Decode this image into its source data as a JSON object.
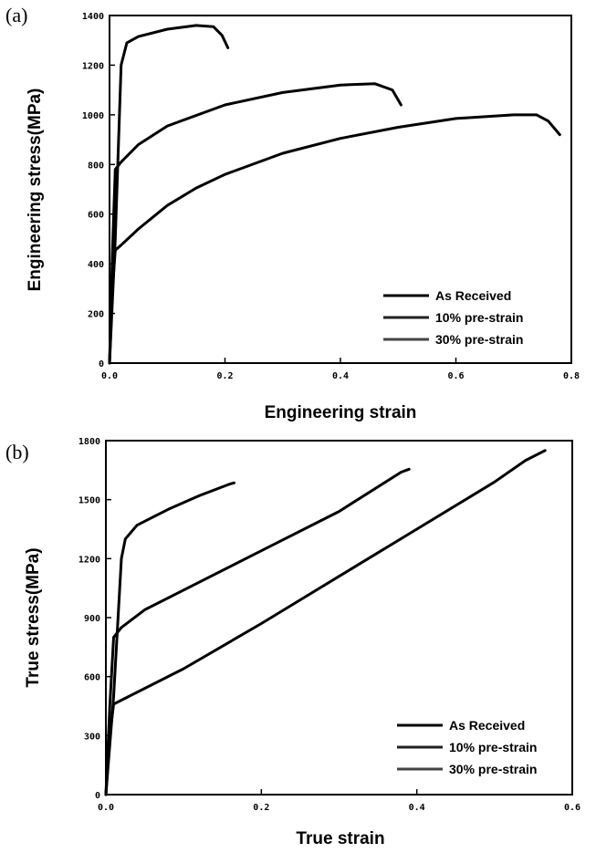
{
  "chart_data": [
    {
      "type": "line",
      "panel_label": "(a)",
      "xlabel": "Engineering strain",
      "ylabel": "Engineering stress(MPa)",
      "xlim": [
        0.0,
        0.8
      ],
      "ylim": [
        0,
        1400
      ],
      "x_ticks": [
        0.0,
        0.2,
        0.4,
        0.6,
        0.8
      ],
      "x_tick_labels": [
        "0.0",
        "0.2",
        "0.4",
        "0.6",
        "0.8"
      ],
      "y_ticks": [
        0,
        200,
        400,
        600,
        800,
        1000,
        1200,
        1400
      ],
      "y_tick_labels": [
        "0",
        "200",
        "400",
        "600",
        "800",
        "1000",
        "1200",
        "1400"
      ],
      "legend_position": "bottom-right",
      "series": [
        {
          "name": "As Received",
          "color": "#000000",
          "x": [
            0.0,
            0.005,
            0.01,
            0.02,
            0.05,
            0.1,
            0.15,
            0.2,
            0.3,
            0.4,
            0.5,
            0.6,
            0.7,
            0.74,
            0.76,
            0.78
          ],
          "y": [
            0,
            300,
            455,
            475,
            540,
            635,
            705,
            760,
            845,
            905,
            950,
            985,
            1000,
            1000,
            975,
            920
          ]
        },
        {
          "name": "10% pre-strain",
          "color": "#222222",
          "x": [
            0.0,
            0.005,
            0.01,
            0.02,
            0.05,
            0.1,
            0.2,
            0.3,
            0.4,
            0.46,
            0.49,
            0.505
          ],
          "y": [
            0,
            450,
            780,
            810,
            880,
            955,
            1040,
            1090,
            1120,
            1125,
            1100,
            1040
          ]
        },
        {
          "name": "30% pre-strain",
          "color": "#444444",
          "x": [
            0.0,
            0.01,
            0.02,
            0.03,
            0.05,
            0.1,
            0.15,
            0.18,
            0.195,
            0.205
          ],
          "y": [
            0,
            500,
            1200,
            1290,
            1315,
            1345,
            1360,
            1355,
            1320,
            1270
          ]
        }
      ]
    },
    {
      "type": "line",
      "panel_label": "(b)",
      "xlabel": "True strain",
      "ylabel": "True stress(MPa)",
      "xlim": [
        0.0,
        0.6
      ],
      "ylim": [
        0,
        1800
      ],
      "x_ticks": [
        0.0,
        0.2,
        0.4,
        0.6
      ],
      "x_tick_labels": [
        "0.0",
        "0.2",
        "0.4",
        "0.6"
      ],
      "y_ticks": [
        0,
        300,
        600,
        900,
        1200,
        1500,
        1800
      ],
      "y_tick_labels": [
        "0",
        "300",
        "600",
        "900",
        "1200",
        "1500",
        "1800"
      ],
      "legend_position": "bottom-right",
      "series": [
        {
          "name": "As Received",
          "color": "#000000",
          "x": [
            0.0,
            0.005,
            0.01,
            0.02,
            0.1,
            0.2,
            0.3,
            0.4,
            0.5,
            0.54,
            0.565
          ],
          "y": [
            0,
            300,
            460,
            480,
            640,
            870,
            1110,
            1350,
            1590,
            1700,
            1750
          ]
        },
        {
          "name": "10% pre-strain",
          "color": "#222222",
          "x": [
            0.0,
            0.005,
            0.01,
            0.02,
            0.05,
            0.1,
            0.2,
            0.3,
            0.38,
            0.39
          ],
          "y": [
            0,
            450,
            800,
            850,
            940,
            1040,
            1240,
            1440,
            1640,
            1655
          ]
        },
        {
          "name": "30% pre-strain",
          "color": "#444444",
          "x": [
            0.0,
            0.01,
            0.02,
            0.025,
            0.04,
            0.08,
            0.12,
            0.16,
            0.165
          ],
          "y": [
            0,
            500,
            1200,
            1300,
            1370,
            1450,
            1520,
            1580,
            1585
          ]
        }
      ]
    }
  ]
}
